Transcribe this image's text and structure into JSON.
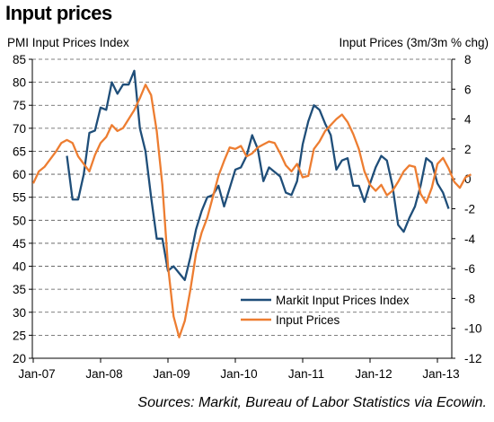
{
  "title": "Input prices",
  "source": "Sources: Markit, Bureau of Labor Statistics via Ecowin.",
  "chart_data": {
    "type": "line",
    "ylabel_left": "PMI Input Prices Index",
    "ylabel_right": "Input Prices (3m/3m % chg)",
    "xlabel": "",
    "x_ticks": [
      "Jan-07",
      "Jan-08",
      "Jan-09",
      "Jan-10",
      "Jan-11",
      "Jan-12",
      "Jan-13"
    ],
    "ylim_left": [
      20,
      85
    ],
    "yticks_left": [
      20,
      25,
      30,
      35,
      40,
      45,
      50,
      55,
      60,
      65,
      70,
      75,
      80,
      85
    ],
    "ylim_right": [
      -12,
      8
    ],
    "yticks_right": [
      -12,
      -10,
      -8,
      -6,
      -4,
      -2,
      0,
      2,
      4,
      6,
      8
    ],
    "grid": "horizontal dashed",
    "legend_position": "bottom-right",
    "series": [
      {
        "name": "Markit Input Prices Index",
        "axis": "left",
        "color": "#1f4e79",
        "start": "Jul-07",
        "values": [
          64,
          54.5,
          54.5,
          60,
          69,
          69.5,
          74.5,
          74,
          80,
          77.5,
          79.5,
          79.5,
          82.5,
          70,
          65,
          55,
          46,
          46,
          39,
          40,
          38.5,
          37,
          42,
          48,
          52,
          55,
          55.5,
          57.5,
          53,
          57,
          61,
          61.5,
          64,
          68.5,
          65.5,
          58.5,
          61.5,
          60.5,
          59.5,
          56,
          55.5,
          58.5,
          66.5,
          71.5,
          75,
          74,
          71,
          68.5,
          61,
          63,
          63.5,
          57.5,
          57.5,
          54,
          58,
          61.5,
          64,
          63,
          57.5,
          49,
          47.5,
          50.5,
          53,
          57.5,
          63.5,
          62.5,
          58,
          56,
          52.5
        ]
      },
      {
        "name": "Input Prices",
        "axis": "right",
        "color": "#ed7d31",
        "start": "Jan-07",
        "values": [
          -0.3,
          0.5,
          0.8,
          1.3,
          1.8,
          2.4,
          2.6,
          2.4,
          1.5,
          1.0,
          0.5,
          1.6,
          2.4,
          2.8,
          3.6,
          3.2,
          3.4,
          4.0,
          4.6,
          5.4,
          6.3,
          5.6,
          3.2,
          -0.4,
          -5.8,
          -9.2,
          -10.6,
          -9.5,
          -7.4,
          -5.0,
          -3.6,
          -2.6,
          -1.2,
          0.2,
          1.2,
          2.1,
          2.0,
          2.2,
          1.5,
          1.7,
          2.1,
          2.3,
          2.5,
          2.4,
          1.7,
          0.9,
          0.5,
          1.0,
          0.1,
          0.2,
          2.0,
          2.5,
          3.2,
          3.6,
          4.0,
          4.3,
          3.8,
          3.0,
          2.0,
          0.5,
          -0.4,
          -0.8,
          -0.4,
          -1.1,
          -0.8,
          -0.2,
          0.5,
          0.9,
          0.8,
          -1.0,
          -1.6,
          -0.6,
          1.0,
          1.4,
          0.7,
          -0.2,
          -0.6,
          0.1,
          0.3
        ]
      }
    ]
  }
}
